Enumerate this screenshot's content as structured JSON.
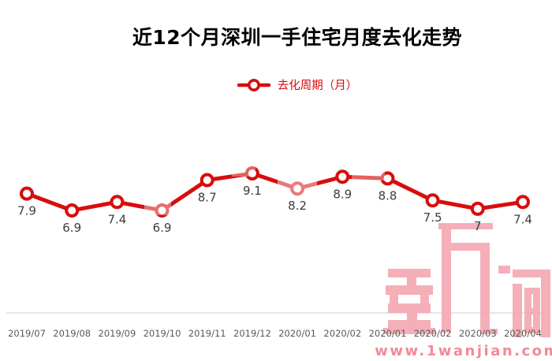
{
  "chart": {
    "title": "近12个月深圳一手住宅月度去化走势",
    "legend_label": "去化周期（月）"
  },
  "chart_data": {
    "type": "line",
    "title": "近12个月深圳一手住宅月度去化走势",
    "categories": [
      "2019/07",
      "2019/08",
      "2019/09",
      "2019/10",
      "2019/11",
      "2019/12",
      "2020/01",
      "2020/02",
      "2020/01",
      "2020/02",
      "2020/03",
      "2020/04"
    ],
    "series": [
      {
        "name": "去化周期（月）",
        "values": [
          7.9,
          6.9,
          7.4,
          6.9,
          8.7,
          9.1,
          8.2,
          8.9,
          8.8,
          7.5,
          7,
          7.4
        ]
      }
    ],
    "data_labels": true,
    "grid": false,
    "y_axis_visible": false,
    "legend_position": "top",
    "line_color": "#d80d0d",
    "marker": "hollow-circle",
    "value_label_color": "#3c3c3c",
    "axis_label_color": "#595959",
    "axis_line_color": "#d7d7d7"
  },
  "watermark": {
    "logo_text": "壹万间",
    "site_text": "www.1wanjian.com",
    "logo_color": "#f5a9b2",
    "url_color": "#f28a98"
  }
}
